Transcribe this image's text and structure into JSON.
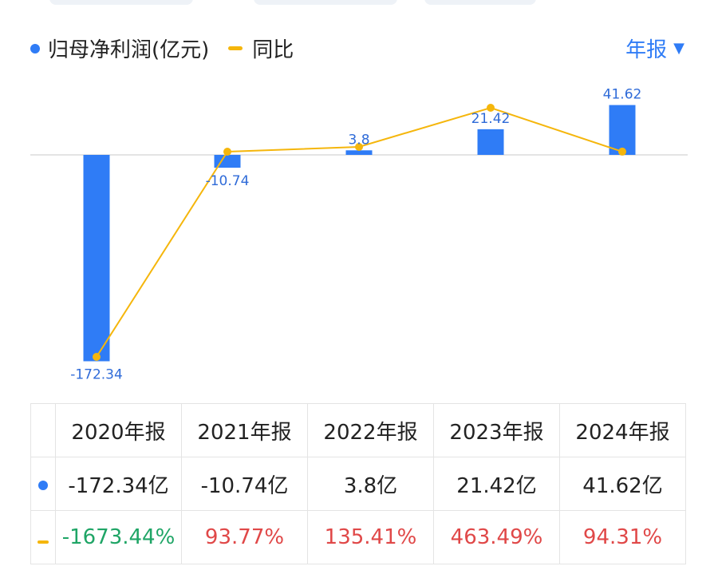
{
  "legend": {
    "bar_label": "归母净利润(亿元)",
    "line_label": "同比"
  },
  "period_selector": {
    "label": "年报",
    "caret": "▼"
  },
  "colors": {
    "bar": "#2f7cf6",
    "line": "#f5b60c",
    "negative": "#1fa566",
    "positive": "#e04848"
  },
  "chart_data": {
    "type": "bar",
    "categories": [
      "2020年报",
      "2021年报",
      "2022年报",
      "2023年报",
      "2024年报"
    ],
    "series": [
      {
        "name": "归母净利润(亿元)",
        "type": "bar",
        "values": [
          -172.34,
          -10.74,
          3.8,
          21.42,
          41.62
        ],
        "labels": [
          "-172.34",
          "-10.74",
          "3.8",
          "21.42",
          "41.62"
        ]
      },
      {
        "name": "同比",
        "type": "line",
        "values": [
          -1673.44,
          93.77,
          135.41,
          463.49,
          94.31
        ]
      }
    ]
  },
  "table": {
    "headers": [
      "2020年报",
      "2021年报",
      "2022年报",
      "2023年报",
      "2024年报"
    ],
    "profit_row": [
      "-172.34亿",
      "-10.74亿",
      "3.8亿",
      "21.42亿",
      "41.62亿"
    ],
    "yoy_row": [
      "-1673.44%",
      "93.77%",
      "135.41%",
      "463.49%",
      "94.31%"
    ]
  }
}
